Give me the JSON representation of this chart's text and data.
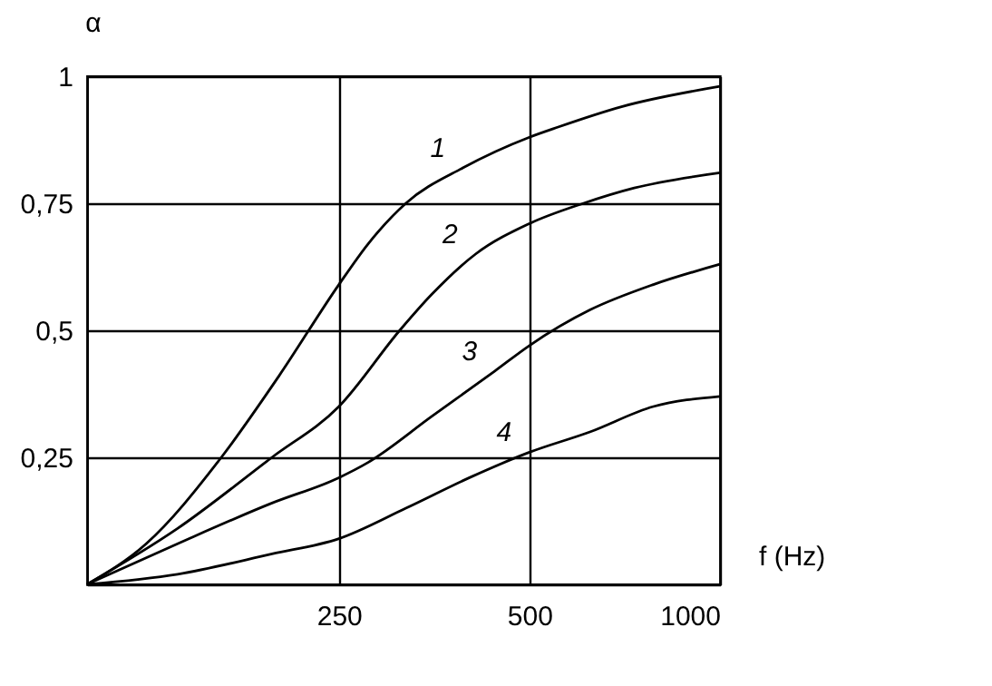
{
  "chart_data": {
    "type": "line",
    "xlabel": "f (Hz)",
    "ylabel": "α",
    "log": "x",
    "xlim": [
      100,
      1000
    ],
    "xticks": [
      250,
      500,
      1000
    ],
    "ylim": [
      0,
      1
    ],
    "yticks": [
      {
        "value": 0,
        "label": null
      },
      {
        "value": 0.25,
        "label": "0,25"
      },
      {
        "value": 0.5,
        "label": "0,5"
      },
      {
        "value": 0.75,
        "label": "0,75"
      },
      {
        "value": 1,
        "label": "1"
      }
    ],
    "grid": true,
    "line_style": "solid",
    "series": [
      {
        "name": "1",
        "color": "#000000",
        "x": [
          100,
          124,
          163,
          201,
          250,
          278,
          319,
          393,
          500,
          555,
          699,
          1000
        ],
        "values": [
          0,
          0.08,
          0.25,
          0.41,
          0.59,
          0.67,
          0.75,
          0.82,
          0.88,
          0.9,
          0.94,
          0.98
        ]
      },
      {
        "name": "2",
        "color": "#000000",
        "x": [
          100,
          139,
          196,
          250,
          312,
          350,
          411,
          500,
          609,
          732,
          1000
        ],
        "values": [
          0,
          0.11,
          0.25,
          0.35,
          0.5,
          0.57,
          0.65,
          0.71,
          0.75,
          0.78,
          0.81
        ]
      },
      {
        "name": "3",
        "color": "#000000",
        "x": [
          100,
          139,
          196,
          250,
          278,
          350,
          441,
          500,
          623,
          785,
          1000
        ],
        "values": [
          0,
          0.08,
          0.16,
          0.21,
          0.24,
          0.33,
          0.42,
          0.47,
          0.54,
          0.59,
          0.63
        ]
      },
      {
        "name": "4",
        "color": "#000000",
        "x": [
          100,
          139,
          196,
          250,
          319,
          402,
          500,
          623,
          785,
          1000
        ],
        "values": [
          0,
          0.02,
          0.06,
          0.09,
          0.15,
          0.21,
          0.26,
          0.3,
          0.35,
          0.37
        ]
      }
    ]
  }
}
